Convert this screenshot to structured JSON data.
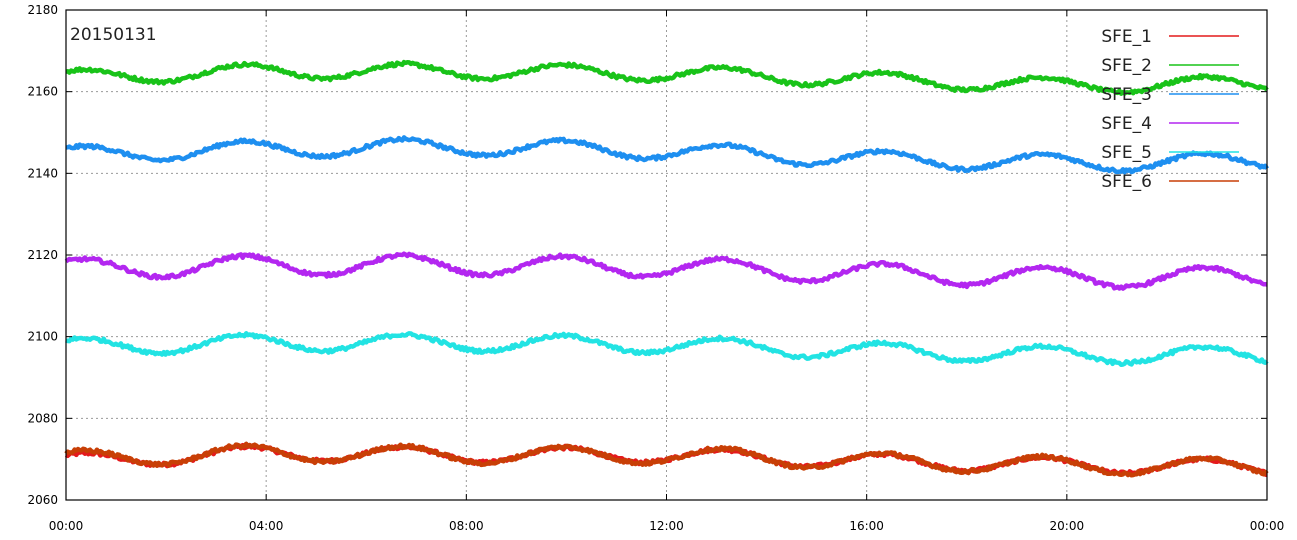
{
  "chart_data": {
    "type": "line",
    "title": "20150131",
    "xlabel": "",
    "ylabel": "",
    "x_ticks": [
      "00:00",
      "04:00",
      "08:00",
      "12:00",
      "16:00",
      "20:00",
      "00:00"
    ],
    "xlim_hours": [
      0,
      24
    ],
    "ylim": [
      2060,
      2180
    ],
    "y_ticks": [
      2060,
      2080,
      2100,
      2120,
      2140,
      2160,
      2180
    ],
    "grid": true,
    "legend_position": "top-right",
    "oscillation_period_hours": 3.2,
    "series": [
      {
        "name": "SFE_1",
        "color": "#e41a1c",
        "baseline": [
          2069.5,
          2071.5,
          2071.0,
          2071.0,
          2069.5,
          2068.5,
          2068.0
        ],
        "amplitude": 1.8
      },
      {
        "name": "SFE_2",
        "color": "#19c319",
        "baseline": [
          2163.5,
          2165.0,
          2165.0,
          2164.5,
          2163.0,
          2161.5,
          2162.0
        ],
        "amplitude": 1.8
      },
      {
        "name": "SFE_3",
        "color": "#1e8ff0",
        "baseline": [
          2144.5,
          2146.0,
          2146.5,
          2145.5,
          2143.5,
          2142.5,
          2143.0
        ],
        "amplitude": 2.0
      },
      {
        "name": "SFE_4",
        "color": "#b327f0",
        "baseline": [
          2116.5,
          2117.5,
          2117.5,
          2117.0,
          2115.5,
          2114.5,
          2114.5
        ],
        "amplitude": 2.4
      },
      {
        "name": "SFE_5",
        "color": "#22e3e3",
        "baseline": [
          2097.5,
          2098.5,
          2098.5,
          2098.0,
          2096.5,
          2095.5,
          2095.5
        ],
        "amplitude": 2.0
      },
      {
        "name": "SFE_6",
        "color": "#c83f06",
        "baseline": [
          2070.0,
          2071.5,
          2071.0,
          2071.0,
          2069.5,
          2068.5,
          2068.0
        ],
        "amplitude": 2.0
      }
    ]
  }
}
